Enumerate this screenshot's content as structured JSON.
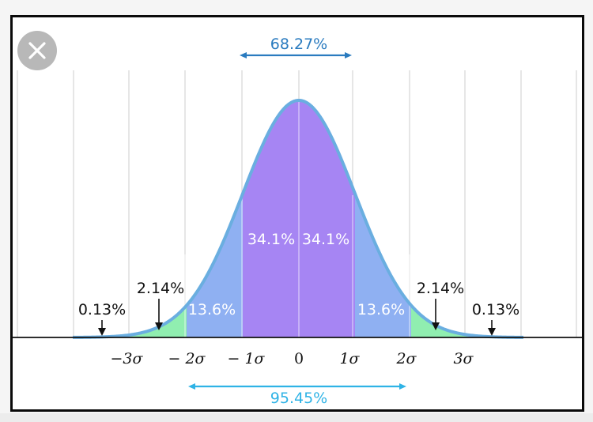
{
  "close_button": {
    "icon": "close-icon"
  },
  "diagram": {
    "top_range_label": "68.27%",
    "bottom_range_label": "95.45%",
    "inner_band_labels": [
      "34.1%",
      "34.1%"
    ],
    "middle_band_labels": [
      "13.6%",
      "13.6%"
    ],
    "outer_band_labels": [
      "2.14%",
      "2.14%"
    ],
    "tail_labels": [
      "0.13%",
      "0.13%"
    ],
    "axis_ticks": [
      "−3σ",
      "− 2σ",
      "− 1σ",
      "0",
      "1σ",
      "2σ",
      "3σ"
    ],
    "colors": {
      "inner": "#a685f3",
      "middle": "#8fb0f2",
      "outer": "#90eeb0",
      "curve": "#6aaee0",
      "top_arrow": "#2a7bbf",
      "bottom_arrow": "#2fb3e6",
      "grid": "#d8d8d8"
    }
  }
}
